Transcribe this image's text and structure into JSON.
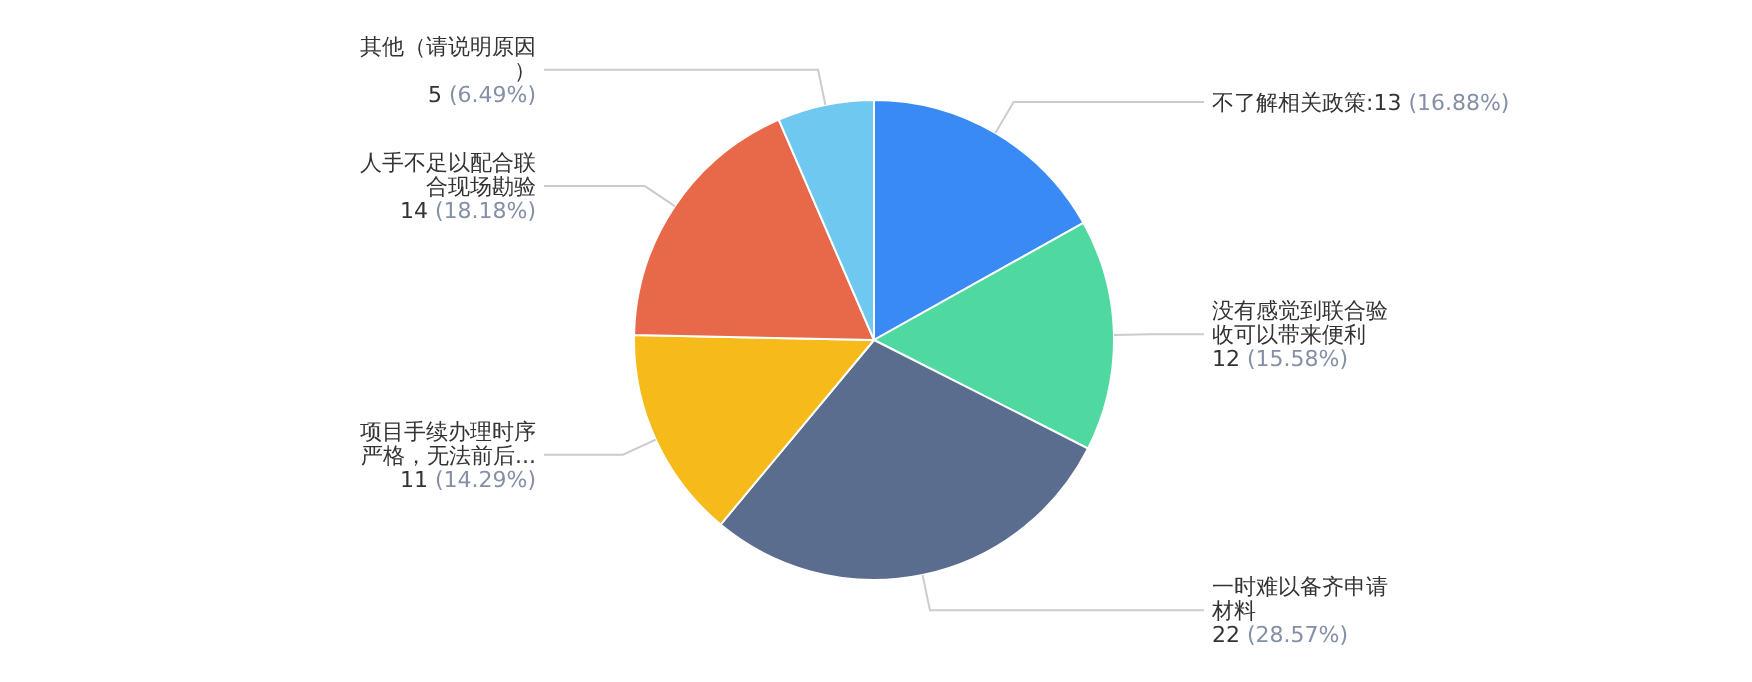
{
  "chart_data": {
    "type": "pie",
    "categories": [
      "不了解相关政策",
      "没有感觉到联合验收可以带来便利",
      "一时难以备齐申请材料",
      "项目手续办理时序严格，无法前后...",
      "人手不足以配合联合现场勘验",
      "其他（请说明原因）"
    ],
    "values": [
      13,
      12,
      22,
      11,
      14,
      5
    ],
    "value_labels": [
      ":13 (16.88%)",
      "12 (15.58%)",
      "22 (28.57%)",
      "11 (14.29%)",
      "14 (18.18%)",
      "5 (6.49%)"
    ],
    "colors": [
      "#3a8af5",
      "#4fd8a0",
      "#5b6d8e",
      "#f6bb1a",
      "#e8694a",
      "#6fc8ef"
    ]
  }
}
